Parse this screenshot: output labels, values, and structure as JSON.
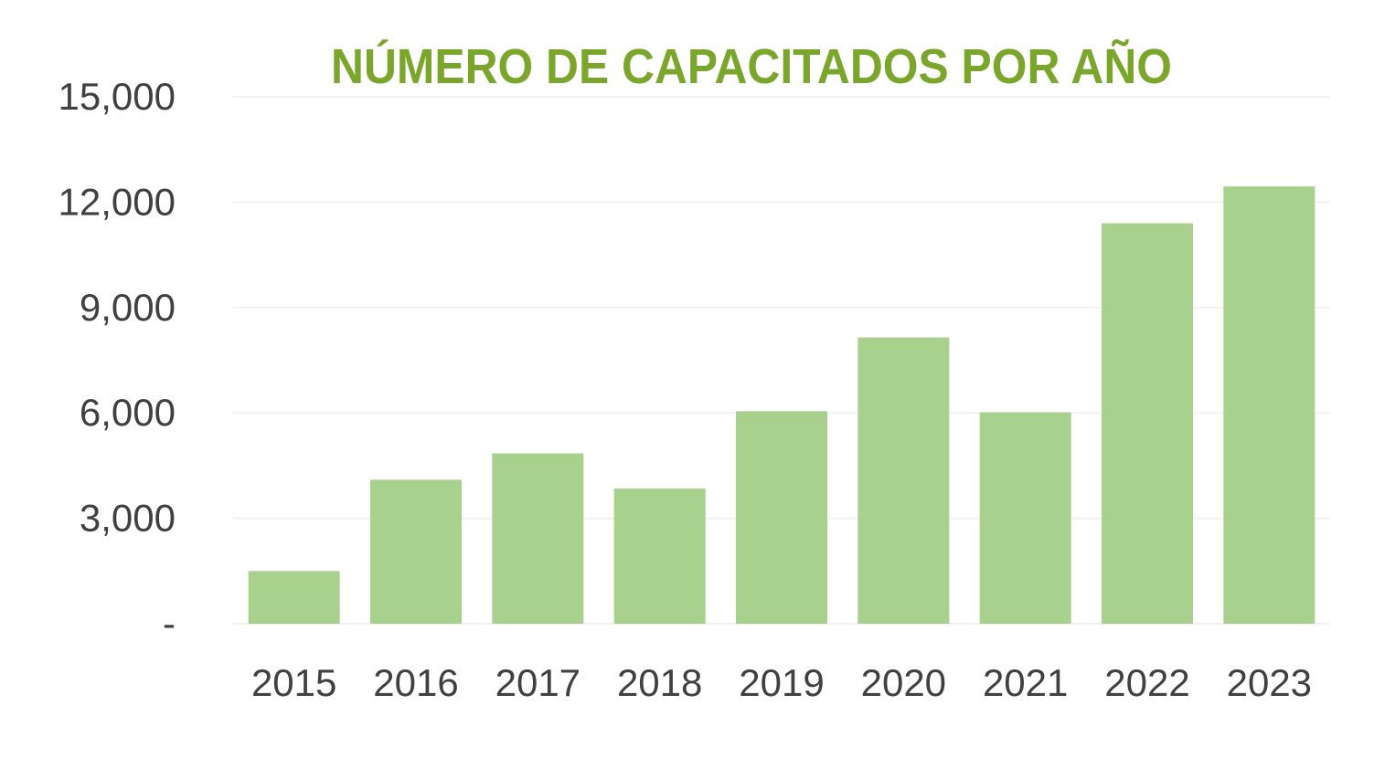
{
  "chart_data": {
    "type": "bar",
    "title": "NÚMERO DE CAPACITADOS POR AÑO",
    "xlabel": "",
    "ylabel": "",
    "categories": [
      "2015",
      "2016",
      "2017",
      "2018",
      "2019",
      "2020",
      "2021",
      "2022",
      "2023"
    ],
    "values": [
      1500,
      4100,
      4850,
      3850,
      6050,
      8150,
      6020,
      11400,
      12450
    ],
    "ylim": [
      0,
      15000
    ],
    "yticks": [
      0,
      3000,
      6000,
      9000,
      12000,
      15000
    ],
    "ytick_labels": [
      "-",
      "3,000",
      "6,000",
      "9,000",
      "12,000",
      "15,000"
    ],
    "grid": true,
    "legend": "none",
    "colors": {
      "bar": "#a9d18e",
      "title": "#7aa72b",
      "tick_text": "#404040",
      "grid": "#f2f2f2"
    }
  }
}
